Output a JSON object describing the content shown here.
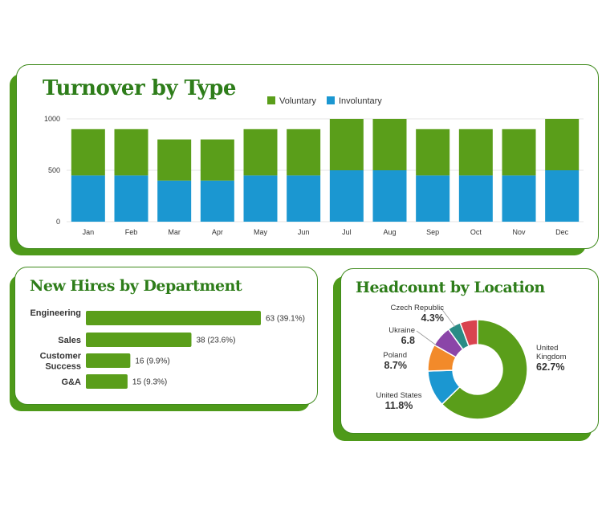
{
  "colors": {
    "green": "#5a9e1a",
    "blue": "#1b97d1",
    "dark_green": "#2e7d1a",
    "border": "#3f8a1c"
  },
  "turnover": {
    "title": "Turnover by Type"
  },
  "hires": {
    "title": "New Hires by Department"
  },
  "location": {
    "title": "Headcount by Location"
  },
  "chart_data": [
    {
      "type": "bar",
      "stacked": true,
      "title": "Turnover by Type",
      "categories": [
        "Jan",
        "Feb",
        "Mar",
        "Apr",
        "May",
        "Jun",
        "Jul",
        "Aug",
        "Sep",
        "Oct",
        "Nov",
        "Dec"
      ],
      "series": [
        {
          "name": "Involuntary",
          "color": "#1b97d1",
          "values": [
            450,
            450,
            400,
            400,
            450,
            450,
            500,
            500,
            450,
            450,
            450,
            500
          ]
        },
        {
          "name": "Voluntary",
          "color": "#5a9e1a",
          "values": [
            450,
            450,
            400,
            400,
            450,
            450,
            500,
            500,
            450,
            450,
            450,
            500
          ]
        }
      ],
      "legend_order": [
        "Voluntary",
        "Involuntary"
      ],
      "yticks": [
        0,
        500,
        1000
      ],
      "ylim": [
        0,
        1000
      ],
      "grid": true,
      "legend": "top-center"
    },
    {
      "type": "bar",
      "orientation": "horizontal",
      "title": "New Hires by Department",
      "categories": [
        [
          "Engineering"
        ],
        [
          "Sales"
        ],
        [
          "Customer",
          "Success"
        ],
        [
          "G&A"
        ]
      ],
      "values": [
        63,
        38,
        16,
        15
      ],
      "value_labels": [
        "63 (39.1%)",
        "38 (23.6%)",
        "16 (9.9%)",
        "15 (9.3%)"
      ],
      "color": "#5a9e1a"
    },
    {
      "type": "pie",
      "donut": true,
      "title": "Headcount by Location",
      "slices": [
        {
          "name": [
            "United",
            "Kingdom"
          ],
          "pct_label": "62.7%",
          "value": 62.7,
          "color": "#5a9e1a"
        },
        {
          "name": [
            "United States"
          ],
          "pct_label": "11.8%",
          "value": 11.8,
          "color": "#1b97d1"
        },
        {
          "name": [
            "Poland"
          ],
          "pct_label": "8.7%",
          "value": 8.7,
          "color": "#f28a2a"
        },
        {
          "name": [
            "Ukraine"
          ],
          "pct_label": "6.8",
          "value": 6.8,
          "color": "#8b45a8"
        },
        {
          "name": [
            "Czech Republic"
          ],
          "pct_label": "4.3%",
          "value": 4.3,
          "color": "#2a8c86"
        },
        {
          "name": [],
          "pct_label": "",
          "value": 5.7,
          "color": "#d9434f"
        }
      ]
    }
  ]
}
